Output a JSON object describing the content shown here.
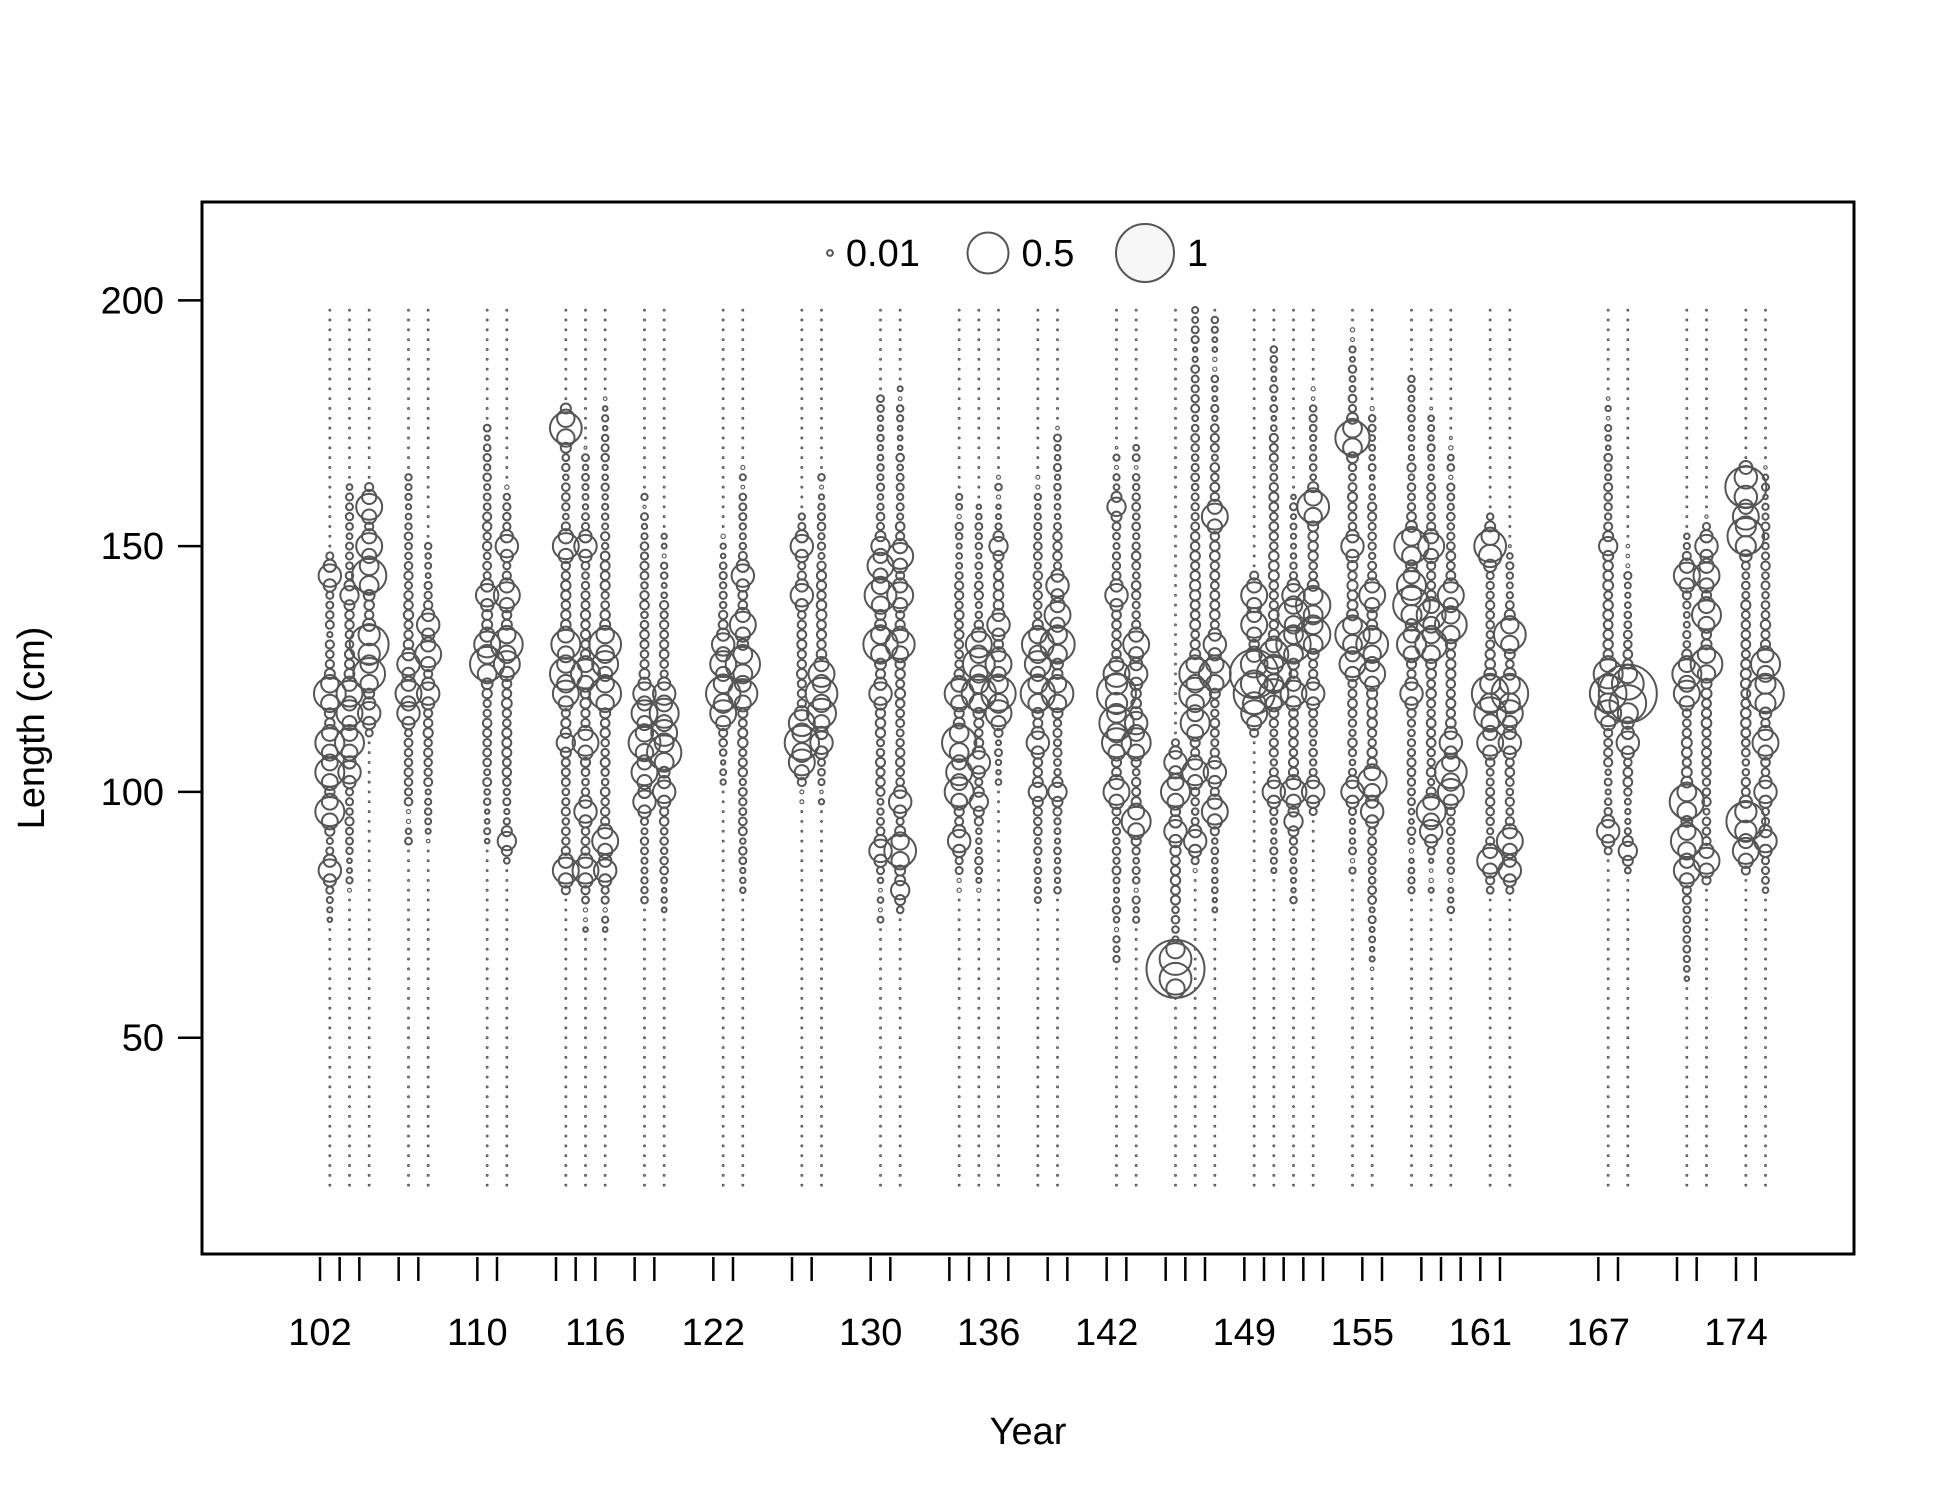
{
  "chart_data": {
    "type": "scatter",
    "subtype": "bubble",
    "xlabel": "Year",
    "ylabel": "Length (cm)",
    "xlim": [
      96,
      180
    ],
    "ylim": [
      6,
      220
    ],
    "y_ticks": [
      50,
      100,
      150,
      200
    ],
    "x_tick_labels": [
      102,
      110,
      116,
      122,
      130,
      136,
      142,
      149,
      155,
      161,
      167,
      174
    ],
    "x_minor_ticks": [
      102,
      103,
      104,
      106,
      107,
      110,
      111,
      114,
      115,
      116,
      118,
      119,
      122,
      123,
      126,
      127,
      130,
      131,
      134,
      135,
      136,
      137,
      139,
      140,
      142,
      143,
      145,
      146,
      147,
      149,
      150,
      151,
      152,
      153,
      155,
      156,
      158,
      159,
      160,
      161,
      162,
      167,
      168,
      171,
      172,
      174,
      175
    ],
    "bin_range": [
      20,
      198
    ],
    "bin_width": 2,
    "legend": {
      "placement": "top-center",
      "entries": [
        {
          "label": "0.01",
          "value": 0.01
        },
        {
          "label": "0.5",
          "value": 0.5
        },
        {
          "label": "1",
          "value": 1
        }
      ]
    },
    "colors": {
      "stroke": "#555555",
      "axis": "#000000",
      "bubble_fill": "none"
    },
    "series": [
      {
        "year": 102.5,
        "lo": 74,
        "hi": 144,
        "peaks": [
          [
            120,
            0.3
          ],
          [
            110,
            0.25
          ],
          [
            104,
            0.25
          ],
          [
            96,
            0.25
          ],
          [
            84,
            0.15
          ],
          [
            144,
            0.15
          ]
        ]
      },
      {
        "year": 103.5,
        "lo": 80,
        "hi": 162,
        "peaks": [
          [
            110,
            0.25
          ],
          [
            116,
            0.2
          ],
          [
            120,
            0.2
          ],
          [
            104,
            0.15
          ],
          [
            140,
            0.1
          ]
        ]
      },
      {
        "year": 104.5,
        "lo": 116,
        "hi": 158,
        "peaks": [
          [
            130,
            0.45
          ],
          [
            144,
            0.35
          ],
          [
            124,
            0.3
          ],
          [
            150,
            0.2
          ],
          [
            158,
            0.2
          ],
          [
            116,
            0.15
          ]
        ]
      },
      {
        "year": 106.5,
        "lo": 90,
        "hi": 165,
        "peaks": [
          [
            120,
            0.2
          ],
          [
            116,
            0.15
          ],
          [
            126,
            0.15
          ]
        ]
      },
      {
        "year": 107.5,
        "lo": 90,
        "hi": 150,
        "peaks": [
          [
            128,
            0.2
          ],
          [
            120,
            0.15
          ],
          [
            134,
            0.15
          ]
        ]
      },
      {
        "year": 110.5,
        "lo": 90,
        "hi": 174,
        "peaks": [
          [
            126,
            0.35
          ],
          [
            130,
            0.2
          ],
          [
            140,
            0.15
          ]
        ]
      },
      {
        "year": 111.5,
        "lo": 86,
        "hi": 162,
        "peaks": [
          [
            130,
            0.3
          ],
          [
            126,
            0.2
          ],
          [
            140,
            0.2
          ],
          [
            150,
            0.15
          ],
          [
            90,
            0.1
          ]
        ]
      },
      {
        "year": 114.5,
        "lo": 80,
        "hi": 174,
        "peaks": [
          [
            174,
            0.3
          ],
          [
            124,
            0.3
          ],
          [
            130,
            0.25
          ],
          [
            120,
            0.2
          ],
          [
            150,
            0.2
          ],
          [
            84,
            0.2
          ],
          [
            110,
            0.1
          ]
        ]
      },
      {
        "year": 115.5,
        "lo": 72,
        "hi": 170,
        "peaks": [
          [
            124,
            0.25
          ],
          [
            110,
            0.2
          ],
          [
            84,
            0.2
          ],
          [
            96,
            0.15
          ],
          [
            150,
            0.15
          ]
        ]
      },
      {
        "year": 116.5,
        "lo": 72,
        "hi": 180,
        "peaks": [
          [
            130,
            0.3
          ],
          [
            120,
            0.3
          ],
          [
            126,
            0.2
          ],
          [
            90,
            0.2
          ],
          [
            84,
            0.15
          ]
        ]
      },
      {
        "year": 118.5,
        "lo": 78,
        "hi": 160,
        "peaks": [
          [
            110,
            0.3
          ],
          [
            116,
            0.2
          ],
          [
            104,
            0.2
          ],
          [
            98,
            0.15
          ],
          [
            120,
            0.15
          ]
        ]
      },
      {
        "year": 119.5,
        "lo": 76,
        "hi": 152,
        "peaks": [
          [
            108,
            0.35
          ],
          [
            116,
            0.25
          ],
          [
            112,
            0.2
          ],
          [
            100,
            0.15
          ],
          [
            120,
            0.15
          ]
        ]
      },
      {
        "year": 122.5,
        "lo": 102,
        "hi": 152,
        "peaks": [
          [
            120,
            0.35
          ],
          [
            116,
            0.2
          ],
          [
            126,
            0.2
          ],
          [
            130,
            0.15
          ]
        ]
      },
      {
        "year": 123.5,
        "lo": 80,
        "hi": 166,
        "peaks": [
          [
            126,
            0.35
          ],
          [
            120,
            0.25
          ],
          [
            134,
            0.2
          ],
          [
            144,
            0.15
          ]
        ]
      },
      {
        "year": 126.5,
        "lo": 98,
        "hi": 156,
        "peaks": [
          [
            110,
            0.35
          ],
          [
            106,
            0.2
          ],
          [
            114,
            0.2
          ],
          [
            140,
            0.15
          ],
          [
            150,
            0.15
          ]
        ]
      },
      {
        "year": 127.5,
        "lo": 98,
        "hi": 164,
        "peaks": [
          [
            120,
            0.3
          ],
          [
            116,
            0.25
          ],
          [
            124,
            0.2
          ],
          [
            110,
            0.15
          ]
        ]
      },
      {
        "year": 130.5,
        "lo": 74,
        "hi": 180,
        "peaks": [
          [
            130,
            0.35
          ],
          [
            140,
            0.3
          ],
          [
            146,
            0.2
          ],
          [
            120,
            0.15
          ],
          [
            88,
            0.15
          ],
          [
            150,
            0.1
          ]
        ]
      },
      {
        "year": 131.5,
        "lo": 76,
        "hi": 182,
        "peaks": [
          [
            88,
            0.3
          ],
          [
            130,
            0.25
          ],
          [
            148,
            0.2
          ],
          [
            140,
            0.2
          ],
          [
            98,
            0.15
          ],
          [
            80,
            0.1
          ]
        ]
      },
      {
        "year": 134.5,
        "lo": 80,
        "hi": 160,
        "peaks": [
          [
            110,
            0.35
          ],
          [
            100,
            0.25
          ],
          [
            104,
            0.2
          ],
          [
            120,
            0.25
          ],
          [
            90,
            0.15
          ]
        ]
      },
      {
        "year": 135.5,
        "lo": 80,
        "hi": 158,
        "peaks": [
          [
            120,
            0.35
          ],
          [
            126,
            0.3
          ],
          [
            130,
            0.2
          ],
          [
            106,
            0.15
          ],
          [
            98,
            0.1
          ]
        ]
      },
      {
        "year": 136.5,
        "lo": 102,
        "hi": 164,
        "peaks": [
          [
            120,
            0.35
          ],
          [
            116,
            0.2
          ],
          [
            126,
            0.2
          ],
          [
            134,
            0.15
          ],
          [
            150,
            0.1
          ]
        ]
      },
      {
        "year": 138.5,
        "lo": 78,
        "hi": 164,
        "peaks": [
          [
            120,
            0.35
          ],
          [
            130,
            0.3
          ],
          [
            126,
            0.2
          ],
          [
            110,
            0.15
          ],
          [
            100,
            0.1
          ]
        ]
      },
      {
        "year": 139.5,
        "lo": 80,
        "hi": 174,
        "peaks": [
          [
            130,
            0.35
          ],
          [
            120,
            0.3
          ],
          [
            136,
            0.2
          ],
          [
            142,
            0.15
          ],
          [
            100,
            0.1
          ]
        ]
      },
      {
        "year": 142.5,
        "lo": 66,
        "hi": 170,
        "peaks": [
          [
            120,
            0.45
          ],
          [
            114,
            0.35
          ],
          [
            124,
            0.2
          ],
          [
            110,
            0.25
          ],
          [
            100,
            0.2
          ],
          [
            140,
            0.15
          ],
          [
            158,
            0.1
          ]
        ]
      },
      {
        "year": 143.5,
        "lo": 74,
        "hi": 170,
        "peaks": [
          [
            110,
            0.25
          ],
          [
            94,
            0.25
          ],
          [
            130,
            0.2
          ],
          [
            114,
            0.15
          ],
          [
            124,
            0.15
          ]
        ]
      },
      {
        "year": 145.5,
        "lo": 64,
        "hi": 110,
        "peaks": [
          [
            64,
            1.0
          ],
          [
            100,
            0.25
          ],
          [
            92,
            0.15
          ],
          [
            106,
            0.15
          ],
          [
            66,
            0.1
          ]
        ]
      },
      {
        "year": 146.5,
        "lo": 84,
        "hi": 198,
        "peaks": [
          [
            124,
            0.3
          ],
          [
            120,
            0.3
          ],
          [
            114,
            0.25
          ],
          [
            104,
            0.2
          ],
          [
            90,
            0.15
          ]
        ]
      },
      {
        "year": 147.5,
        "lo": 76,
        "hi": 196,
        "peaks": [
          [
            124,
            0.3
          ],
          [
            156,
            0.2
          ],
          [
            96,
            0.2
          ],
          [
            130,
            0.15
          ],
          [
            104,
            0.15
          ]
        ]
      },
      {
        "year": 149.5,
        "lo": 116,
        "hi": 142,
        "peaks": [
          [
            124,
            0.7
          ],
          [
            120,
            0.5
          ],
          [
            116,
            0.2
          ],
          [
            134,
            0.2
          ],
          [
            140,
            0.2
          ]
        ]
      },
      {
        "year": 150.5,
        "lo": 84,
        "hi": 190,
        "peaks": [
          [
            124,
            0.35
          ],
          [
            120,
            0.25
          ],
          [
            128,
            0.25
          ],
          [
            100,
            0.15
          ]
        ]
      },
      {
        "year": 151.5,
        "lo": 78,
        "hi": 160,
        "peaks": [
          [
            130,
            0.35
          ],
          [
            136,
            0.3
          ],
          [
            100,
            0.2
          ],
          [
            120,
            0.2
          ],
          [
            140,
            0.15
          ],
          [
            94,
            0.1
          ]
        ]
      },
      {
        "year": 152.5,
        "lo": 96,
        "hi": 182,
        "peaks": [
          [
            138,
            0.35
          ],
          [
            132,
            0.35
          ],
          [
            158,
            0.3
          ],
          [
            100,
            0.15
          ],
          [
            120,
            0.15
          ]
        ]
      },
      {
        "year": 154.5,
        "lo": 84,
        "hi": 194,
        "peaks": [
          [
            132,
            0.35
          ],
          [
            172,
            0.35
          ],
          [
            126,
            0.2
          ],
          [
            100,
            0.15
          ],
          [
            150,
            0.15
          ]
        ]
      },
      {
        "year": 155.5,
        "lo": 64,
        "hi": 178,
        "peaks": [
          [
            130,
            0.3
          ],
          [
            102,
            0.25
          ],
          [
            124,
            0.2
          ],
          [
            140,
            0.2
          ],
          [
            96,
            0.15
          ]
        ]
      },
      {
        "year": 157.5,
        "lo": 80,
        "hi": 184,
        "peaks": [
          [
            138,
            0.4
          ],
          [
            150,
            0.35
          ],
          [
            130,
            0.25
          ],
          [
            142,
            0.25
          ],
          [
            120,
            0.15
          ]
        ]
      },
      {
        "year": 158.5,
        "lo": 80,
        "hi": 178,
        "peaks": [
          [
            130,
            0.3
          ],
          [
            136,
            0.25
          ],
          [
            96,
            0.25
          ],
          [
            150,
            0.2
          ],
          [
            92,
            0.15
          ]
        ]
      },
      {
        "year": 159.5,
        "lo": 76,
        "hi": 172,
        "peaks": [
          [
            134,
            0.3
          ],
          [
            104,
            0.3
          ],
          [
            100,
            0.2
          ],
          [
            140,
            0.2
          ],
          [
            110,
            0.15
          ]
        ]
      },
      {
        "year": 161.5,
        "lo": 80,
        "hi": 156,
        "peaks": [
          [
            120,
            0.4
          ],
          [
            116,
            0.3
          ],
          [
            150,
            0.3
          ],
          [
            110,
            0.2
          ],
          [
            86,
            0.2
          ],
          [
            148,
            0.15
          ]
        ]
      },
      {
        "year": 162.5,
        "lo": 80,
        "hi": 150,
        "peaks": [
          [
            120,
            0.4
          ],
          [
            132,
            0.3
          ],
          [
            116,
            0.2
          ],
          [
            90,
            0.2
          ],
          [
            84,
            0.15
          ],
          [
            110,
            0.15
          ]
        ]
      },
      {
        "year": 167.5,
        "lo": 88,
        "hi": 180,
        "peaks": [
          [
            120,
            0.4
          ],
          [
            124,
            0.25
          ],
          [
            116,
            0.2
          ],
          [
            92,
            0.15
          ],
          [
            150,
            0.1
          ]
        ]
      },
      {
        "year": 168.5,
        "lo": 86,
        "hi": 150,
        "peaks": [
          [
            120,
            1.0
          ],
          [
            118,
            0.4
          ],
          [
            110,
            0.15
          ],
          [
            88,
            0.1
          ]
        ]
      },
      {
        "year": 171.5,
        "lo": 62,
        "hi": 152,
        "peaks": [
          [
            98,
            0.35
          ],
          [
            90,
            0.3
          ],
          [
            124,
            0.25
          ],
          [
            120,
            0.2
          ],
          [
            84,
            0.2
          ],
          [
            144,
            0.2
          ]
        ]
      },
      {
        "year": 172.5,
        "lo": 82,
        "hi": 156,
        "peaks": [
          [
            126,
            0.3
          ],
          [
            136,
            0.25
          ],
          [
            144,
            0.2
          ],
          [
            86,
            0.2
          ],
          [
            150,
            0.15
          ]
        ]
      },
      {
        "year": 174.5,
        "lo": 84,
        "hi": 166,
        "peaks": [
          [
            162,
            0.5
          ],
          [
            152,
            0.4
          ],
          [
            94,
            0.45
          ],
          [
            156,
            0.2
          ],
          [
            88,
            0.2
          ]
        ]
      },
      {
        "year": 175.5,
        "lo": 80,
        "hi": 166,
        "peaks": [
          [
            120,
            0.4
          ],
          [
            126,
            0.25
          ],
          [
            110,
            0.2
          ],
          [
            100,
            0.15
          ],
          [
            90,
            0.15
          ]
        ]
      }
    ]
  }
}
